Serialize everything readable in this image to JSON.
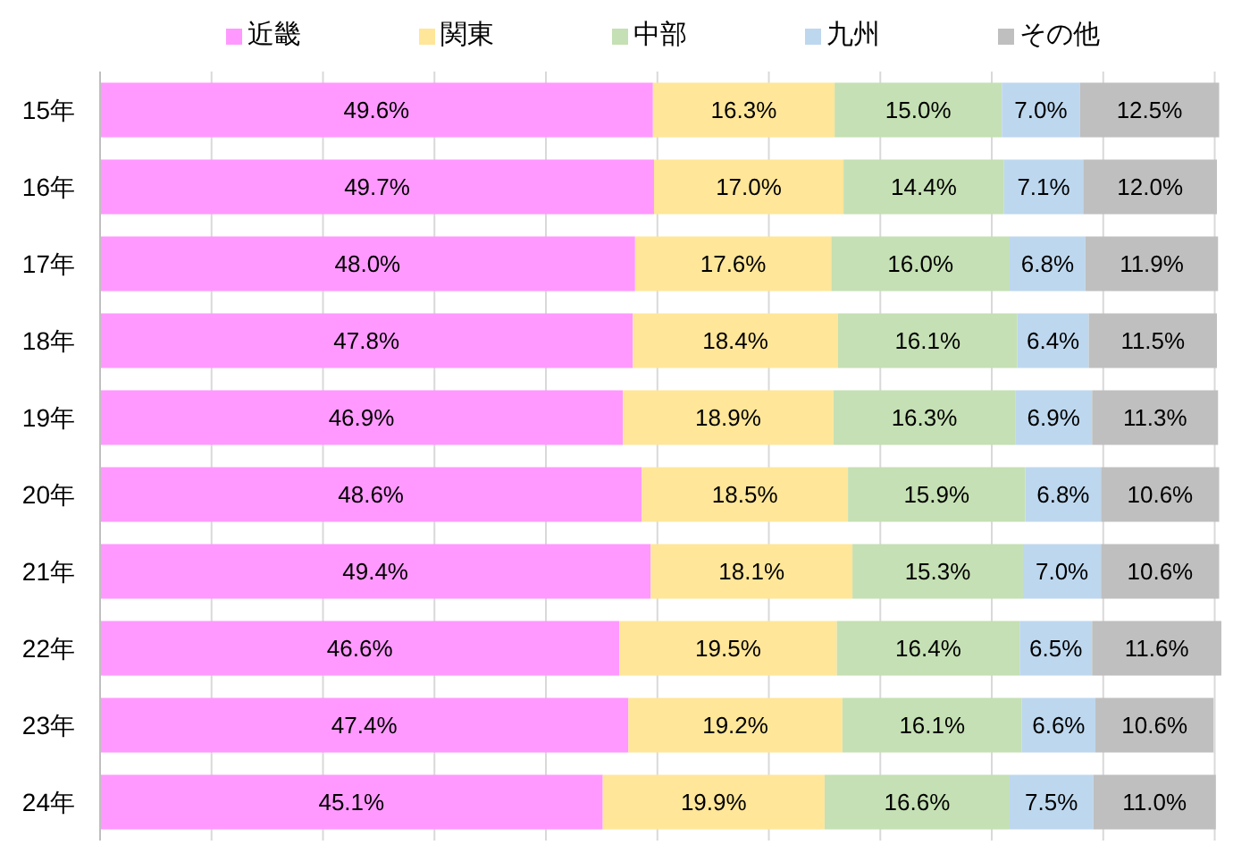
{
  "chart_data": {
    "type": "bar",
    "orientation": "horizontal",
    "stacked": true,
    "categories": [
      "15年",
      "16年",
      "17年",
      "18年",
      "19年",
      "20年",
      "21年",
      "22年",
      "23年",
      "24年"
    ],
    "series": [
      {
        "name": "近畿",
        "color": "#ff99ff",
        "values": [
          49.6,
          49.7,
          48.0,
          47.8,
          46.9,
          48.6,
          49.4,
          46.6,
          47.4,
          45.1
        ],
        "value_labels": [
          "49.6%",
          "49.7%",
          "48.0%",
          "47.8%",
          "46.9%",
          "48.6%",
          "49.4%",
          "46.6%",
          "47.4%",
          "45.1%"
        ]
      },
      {
        "name": "関東",
        "color": "#ffe699",
        "values": [
          16.3,
          17.0,
          17.6,
          18.4,
          18.9,
          18.5,
          18.1,
          19.5,
          19.2,
          19.9
        ],
        "value_labels": [
          "16.3%",
          "17.0%",
          "17.6%",
          "18.4%",
          "18.9%",
          "18.5%",
          "18.1%",
          "19.5%",
          "19.2%",
          "19.9%"
        ]
      },
      {
        "name": "中部",
        "color": "#c5e0b4",
        "values": [
          15.0,
          14.4,
          16.0,
          16.1,
          16.3,
          15.9,
          15.3,
          16.4,
          16.1,
          16.6
        ],
        "value_labels": [
          "15.0%",
          "14.4%",
          "16.0%",
          "16.1%",
          "16.3%",
          "15.9%",
          "15.3%",
          "16.4%",
          "16.1%",
          "16.6%"
        ]
      },
      {
        "name": "九州",
        "color": "#bdd7ee",
        "values": [
          7.0,
          7.1,
          6.8,
          6.4,
          6.9,
          6.8,
          7.0,
          6.5,
          6.6,
          7.5
        ],
        "value_labels": [
          "7.0%",
          "7.1%",
          "6.8%",
          "6.4%",
          "6.9%",
          "6.8%",
          "7.0%",
          "6.5%",
          "6.6%",
          "7.5%"
        ]
      },
      {
        "name": "その他",
        "color": "#bfbfbf",
        "values": [
          12.5,
          12.0,
          11.9,
          11.5,
          11.3,
          10.6,
          10.6,
          11.6,
          10.6,
          11.0
        ],
        "value_labels": [
          "12.5%",
          "12.0%",
          "11.9%",
          "11.5%",
          "11.3%",
          "10.6%",
          "10.6%",
          "11.6%",
          "10.6%",
          "11.0%"
        ]
      }
    ],
    "xlim": [
      0,
      101
    ],
    "xticks": [
      {
        "value": 0,
        "label": null
      },
      {
        "value": 10,
        "label": null
      },
      {
        "value": 20,
        "label": null
      },
      {
        "value": 30,
        "label": null
      },
      {
        "value": 40,
        "label": null
      },
      {
        "value": 50,
        "label": null
      },
      {
        "value": 60,
        "label": null
      },
      {
        "value": 70,
        "label": null
      },
      {
        "value": 80,
        "label": null
      },
      {
        "value": 90,
        "label": null
      },
      {
        "value": 100,
        "label": null
      }
    ],
    "grid": "x",
    "legend": "top",
    "tick_labels": "y"
  }
}
